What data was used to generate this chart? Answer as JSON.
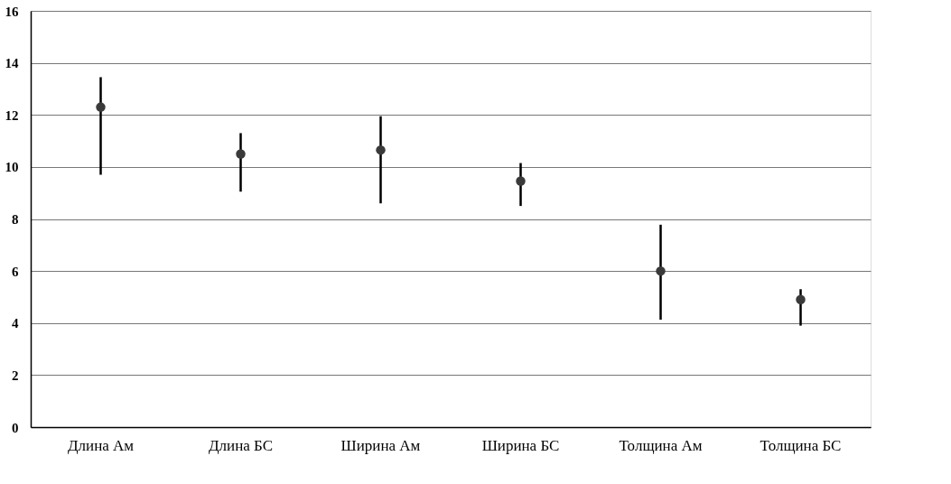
{
  "chart_data": {
    "type": "scatter",
    "categories": [
      "Длина Ам",
      "Длина БС",
      "Ширина Ам",
      "Ширина БС",
      "Толщина Ам",
      "Толщина БС"
    ],
    "series": [
      {
        "color": "#3a3a3a",
        "values": [
          12.3,
          10.5,
          10.65,
          9.46,
          6.0,
          4.9
        ],
        "errors": [
          [
            9.7,
            13.45
          ],
          [
            9.05,
            11.3
          ],
          [
            8.6,
            11.95
          ],
          [
            8.5,
            10.15
          ],
          [
            4.13,
            7.78
          ],
          [
            3.9,
            5.3
          ]
        ]
      }
    ],
    "ylim": [
      0,
      16
    ],
    "yticks": [
      0,
      2,
      4,
      6,
      8,
      10,
      12,
      14,
      16
    ],
    "grid": "y",
    "marker": "circle"
  }
}
